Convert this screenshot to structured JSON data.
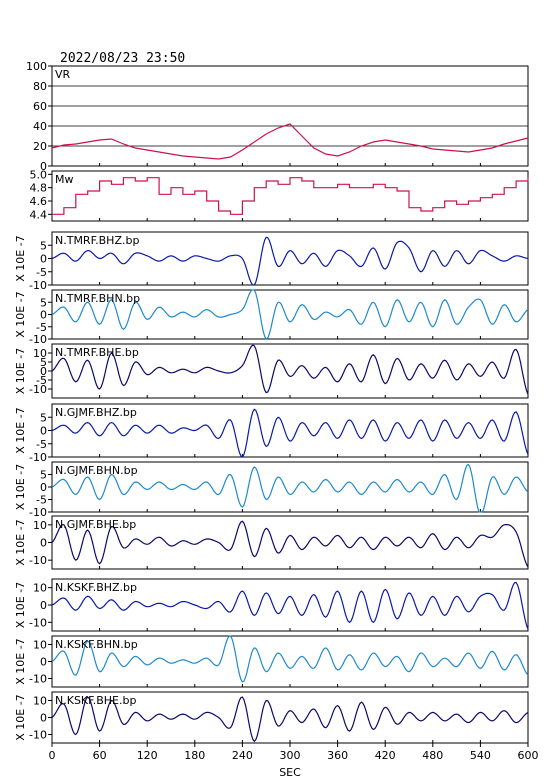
{
  "page": {
    "timestamp": "2022/08/23 23:50",
    "xlabel": "SEC"
  },
  "chart_data": {
    "type": "line",
    "xlim": [
      0,
      600
    ],
    "xticks": [
      0,
      60,
      120,
      180,
      240,
      300,
      360,
      420,
      480,
      540,
      600
    ],
    "panels": [
      {
        "label": "VR",
        "kind": "vr",
        "color": "#d0104c",
        "ylabel": "",
        "ylim": [
          0,
          100
        ],
        "yticks": [
          "0",
          "20",
          "40",
          "60",
          "80",
          "100"
        ],
        "ytick_values": [
          0,
          20,
          40,
          60,
          80,
          100
        ],
        "grid": true,
        "x": [
          0,
          15,
          30,
          45,
          60,
          75,
          90,
          105,
          120,
          135,
          150,
          165,
          180,
          195,
          210,
          225,
          240,
          255,
          270,
          285,
          300,
          315,
          330,
          345,
          360,
          375,
          390,
          405,
          420,
          435,
          450,
          465,
          480,
          495,
          510,
          525,
          540,
          555,
          570,
          585,
          600
        ],
        "y": [
          18,
          21,
          22,
          24,
          26,
          27,
          22,
          18,
          16,
          14,
          12,
          10,
          9,
          8,
          7,
          9,
          16,
          24,
          32,
          38,
          42,
          30,
          18,
          12,
          10,
          14,
          20,
          24,
          26,
          24,
          22,
          20,
          17,
          16,
          15,
          14,
          16,
          18,
          22,
          25,
          28
        ]
      },
      {
        "label": "Mw",
        "kind": "step",
        "color": "#d0104c",
        "ylabel": "",
        "ylim": [
          4.3,
          5.05
        ],
        "yticks": [
          "4.4",
          "4.6",
          "4.8",
          "5.0"
        ],
        "ytick_values": [
          4.4,
          4.6,
          4.8,
          5.0
        ],
        "grid": false,
        "x": [
          0,
          15,
          30,
          45,
          60,
          75,
          90,
          105,
          120,
          135,
          150,
          165,
          180,
          195,
          210,
          225,
          240,
          255,
          270,
          285,
          300,
          315,
          330,
          345,
          360,
          375,
          390,
          405,
          420,
          435,
          450,
          465,
          480,
          495,
          510,
          525,
          540,
          555,
          570,
          585,
          600
        ],
        "y": [
          4.4,
          4.5,
          4.7,
          4.75,
          4.9,
          4.85,
          4.95,
          4.9,
          4.95,
          4.7,
          4.8,
          4.7,
          4.75,
          4.6,
          4.45,
          4.4,
          4.6,
          4.8,
          4.9,
          4.85,
          4.95,
          4.9,
          4.8,
          4.8,
          4.85,
          4.8,
          4.8,
          4.85,
          4.8,
          4.75,
          4.5,
          4.45,
          4.5,
          4.6,
          4.55,
          4.6,
          4.65,
          4.7,
          4.8,
          4.9,
          4.95
        ]
      },
      {
        "label": "N.TMRF.BHZ.bp",
        "kind": "wave",
        "color": "#0a1aa8",
        "ylabel": "X 10E -7",
        "ylim": [
          -10,
          10
        ],
        "yticks": [
          "5",
          "0",
          "-5",
          "-10"
        ],
        "ytick_values": [
          5,
          0,
          -5,
          -10
        ],
        "grid": false,
        "x": [
          0,
          15,
          30,
          45,
          60,
          75,
          90,
          105,
          120,
          135,
          150,
          165,
          180,
          195,
          210,
          225,
          240,
          255,
          270,
          285,
          300,
          315,
          330,
          345,
          360,
          375,
          390,
          405,
          420,
          435,
          450,
          465,
          480,
          495,
          510,
          525,
          540,
          555,
          570,
          585,
          600
        ],
        "y": [
          0,
          2,
          -1,
          3,
          0,
          2,
          -2,
          2,
          1,
          -1,
          1,
          -1,
          1,
          0,
          -1,
          1,
          0,
          -10,
          8,
          -3,
          3,
          -2,
          2,
          -3,
          3,
          1,
          -3,
          4,
          -4,
          6,
          4,
          -5,
          3,
          -3,
          3,
          -2,
          3,
          1,
          -1,
          1,
          0
        ]
      },
      {
        "label": "N.TMRF.BHN.bp",
        "kind": "wave",
        "color": "#1e8ad0",
        "ylabel": "X 10E -7",
        "ylim": [
          -10,
          10
        ],
        "yticks": [
          "5",
          "0",
          "-5",
          "-10"
        ],
        "ytick_values": [
          5,
          0,
          -5,
          -10
        ],
        "grid": false,
        "x": [
          0,
          15,
          30,
          45,
          60,
          75,
          90,
          105,
          120,
          135,
          150,
          165,
          180,
          195,
          210,
          225,
          240,
          255,
          270,
          285,
          300,
          315,
          330,
          345,
          360,
          375,
          390,
          405,
          420,
          435,
          450,
          465,
          480,
          495,
          510,
          525,
          540,
          555,
          570,
          585,
          600
        ],
        "y": [
          0,
          3,
          -3,
          5,
          -4,
          6,
          -6,
          5,
          -2,
          3,
          -1,
          1,
          -1,
          2,
          -1,
          0,
          2,
          10,
          -10,
          5,
          -3,
          4,
          -2,
          1,
          -1,
          2,
          -4,
          5,
          -5,
          6,
          -3,
          5,
          -5,
          6,
          -4,
          3,
          6,
          -4,
          4,
          -3,
          2
        ]
      },
      {
        "label": "N.TMRF.BHE.bp",
        "kind": "wave",
        "color": "#0a0a6a",
        "ylabel": "X 10E -7",
        "ylim": [
          -15,
          15
        ],
        "yticks": [
          "10",
          "5",
          "0",
          "-5",
          "-10"
        ],
        "ytick_values": [
          10,
          5,
          0,
          -5,
          -10
        ],
        "grid": false,
        "x": [
          0,
          15,
          30,
          45,
          60,
          75,
          90,
          105,
          120,
          135,
          150,
          165,
          180,
          195,
          210,
          225,
          240,
          255,
          270,
          285,
          300,
          315,
          330,
          345,
          360,
          375,
          390,
          405,
          420,
          435,
          450,
          465,
          480,
          495,
          510,
          525,
          540,
          555,
          570,
          585,
          600
        ],
        "y": [
          0,
          7,
          -6,
          6,
          -10,
          10,
          -8,
          5,
          -2,
          2,
          -1,
          1,
          -1,
          2,
          0,
          -1,
          3,
          14,
          -12,
          6,
          -3,
          3,
          -4,
          2,
          -6,
          4,
          -6,
          9,
          -7,
          7,
          -5,
          4,
          -4,
          6,
          -5,
          4,
          -3,
          5,
          -4,
          12,
          -13
        ]
      },
      {
        "label": "N.GJMF.BHZ.bp",
        "kind": "wave",
        "color": "#0a1aa8",
        "ylabel": "X 10E -7",
        "ylim": [
          -10,
          10
        ],
        "yticks": [
          "5",
          "0",
          "-5",
          "-10"
        ],
        "ytick_values": [
          5,
          0,
          -5,
          -10
        ],
        "grid": false,
        "x": [
          0,
          15,
          30,
          45,
          60,
          75,
          90,
          105,
          120,
          135,
          150,
          165,
          180,
          195,
          210,
          225,
          240,
          255,
          270,
          285,
          300,
          315,
          330,
          345,
          360,
          375,
          390,
          405,
          420,
          435,
          450,
          465,
          480,
          495,
          510,
          525,
          540,
          555,
          570,
          585,
          600
        ],
        "y": [
          0,
          2,
          -1,
          3,
          -2,
          3,
          -2,
          2,
          -1,
          2,
          -1,
          1,
          0,
          2,
          -3,
          4,
          -10,
          8,
          -6,
          5,
          -4,
          3,
          -2,
          3,
          -3,
          4,
          -3,
          4,
          -4,
          3,
          -3,
          4,
          -4,
          4,
          -3,
          3,
          -3,
          4,
          -4,
          7,
          -9
        ]
      },
      {
        "label": "N.GJMF.BHN.bp",
        "kind": "wave",
        "color": "#1e8ad0",
        "ylabel": "X 10E -7",
        "ylim": [
          -10,
          10
        ],
        "yticks": [
          "5",
          "0",
          "-5",
          "-10"
        ],
        "ytick_values": [
          5,
          0,
          -5,
          -10
        ],
        "grid": false,
        "x": [
          0,
          15,
          30,
          45,
          60,
          75,
          90,
          105,
          120,
          135,
          150,
          165,
          180,
          195,
          210,
          225,
          240,
          255,
          270,
          285,
          300,
          315,
          330,
          345,
          360,
          375,
          390,
          405,
          420,
          435,
          450,
          465,
          480,
          495,
          510,
          525,
          540,
          555,
          570,
          585,
          600
        ],
        "y": [
          0,
          3,
          -3,
          4,
          -5,
          5,
          -3,
          2,
          -1,
          2,
          -1,
          1,
          -1,
          2,
          -3,
          5,
          -8,
          8,
          -5,
          4,
          -3,
          2,
          -2,
          3,
          -2,
          2,
          -3,
          2,
          -2,
          3,
          -2,
          2,
          -3,
          5,
          -5,
          9,
          -11,
          4,
          -3,
          4,
          -2
        ]
      },
      {
        "label": "N.GJMF.BHE.bp",
        "kind": "wave",
        "color": "#0a0a6a",
        "ylabel": "X 10E -7",
        "ylim": [
          -15,
          15
        ],
        "yticks": [
          "10",
          "0",
          "-10"
        ],
        "ytick_values": [
          10,
          0,
          -10
        ],
        "grid": false,
        "x": [
          0,
          15,
          30,
          45,
          60,
          75,
          90,
          105,
          120,
          135,
          150,
          165,
          180,
          195,
          210,
          225,
          240,
          255,
          270,
          285,
          300,
          315,
          330,
          345,
          360,
          375,
          390,
          405,
          420,
          435,
          450,
          465,
          480,
          495,
          510,
          525,
          540,
          555,
          570,
          585,
          600
        ],
        "y": [
          0,
          10,
          -10,
          7,
          -12,
          9,
          -3,
          2,
          -1,
          3,
          -2,
          1,
          -1,
          2,
          0,
          -4,
          12,
          -8,
          8,
          -6,
          4,
          -4,
          3,
          -2,
          4,
          -3,
          3,
          -4,
          3,
          -2,
          3,
          -3,
          5,
          -4,
          3,
          -3,
          4,
          3,
          10,
          6,
          -14
        ]
      },
      {
        "label": "N.KSKF.BHZ.bp",
        "kind": "wave",
        "color": "#0a1aa8",
        "ylabel": "X 10E -7",
        "ylim": [
          -15,
          15
        ],
        "yticks": [
          "10",
          "0",
          "-10"
        ],
        "ytick_values": [
          10,
          0,
          -10
        ],
        "grid": false,
        "x": [
          0,
          15,
          30,
          45,
          60,
          75,
          90,
          105,
          120,
          135,
          150,
          165,
          180,
          195,
          210,
          225,
          240,
          255,
          270,
          285,
          300,
          315,
          330,
          345,
          360,
          375,
          390,
          405,
          420,
          435,
          450,
          465,
          480,
          495,
          510,
          525,
          540,
          555,
          570,
          585,
          600
        ],
        "y": [
          0,
          4,
          -3,
          5,
          -2,
          3,
          -3,
          2,
          -1,
          1,
          -1,
          2,
          0,
          -2,
          2,
          -4,
          8,
          -6,
          7,
          -5,
          5,
          -6,
          6,
          -7,
          8,
          -10,
          8,
          -10,
          9,
          -8,
          7,
          -6,
          5,
          -6,
          5,
          -4,
          5,
          6,
          -3,
          13,
          -14
        ]
      },
      {
        "label": "N.KSKF.BHN.bp",
        "kind": "wave",
        "color": "#1e8ad0",
        "ylabel": "X 10E -7",
        "ylim": [
          -15,
          15
        ],
        "yticks": [
          "10",
          "0",
          "-10"
        ],
        "ytick_values": [
          10,
          0,
          -10
        ],
        "grid": false,
        "x": [
          0,
          15,
          30,
          45,
          60,
          75,
          90,
          105,
          120,
          135,
          150,
          165,
          180,
          195,
          210,
          225,
          240,
          255,
          270,
          285,
          300,
          315,
          330,
          345,
          360,
          375,
          390,
          405,
          420,
          435,
          450,
          465,
          480,
          495,
          510,
          525,
          540,
          555,
          570,
          585,
          600
        ],
        "y": [
          0,
          6,
          -8,
          12,
          -6,
          5,
          -3,
          3,
          -2,
          2,
          -1,
          1,
          -1,
          2,
          -2,
          15,
          -12,
          8,
          -6,
          5,
          -4,
          3,
          -4,
          8,
          -5,
          4,
          -5,
          5,
          -3,
          3,
          -6,
          5,
          -3,
          2,
          -3,
          5,
          -4,
          6,
          -5,
          4,
          -8
        ]
      },
      {
        "label": "N.KSKF.BHE.bp",
        "kind": "wave",
        "color": "#0a0a6a",
        "ylabel": "X 10E -7",
        "ylim": [
          -15,
          15
        ],
        "yticks": [
          "10",
          "0",
          "-10"
        ],
        "ytick_values": [
          10,
          0,
          -10
        ],
        "grid": false,
        "x": [
          0,
          15,
          30,
          45,
          60,
          75,
          90,
          105,
          120,
          135,
          150,
          165,
          180,
          195,
          210,
          225,
          240,
          255,
          270,
          285,
          300,
          315,
          330,
          345,
          360,
          375,
          390,
          405,
          420,
          435,
          450,
          465,
          480,
          495,
          510,
          525,
          540,
          555,
          570,
          585,
          600
        ],
        "y": [
          0,
          8,
          -10,
          12,
          -8,
          10,
          -4,
          3,
          -2,
          2,
          -1,
          2,
          -1,
          3,
          0,
          -6,
          12,
          -14,
          10,
          -5,
          4,
          -3,
          5,
          -6,
          7,
          -8,
          9,
          -7,
          6,
          -4,
          3,
          -2,
          3,
          -2,
          2,
          -3,
          3,
          -2,
          4,
          -3,
          3
        ]
      }
    ]
  }
}
